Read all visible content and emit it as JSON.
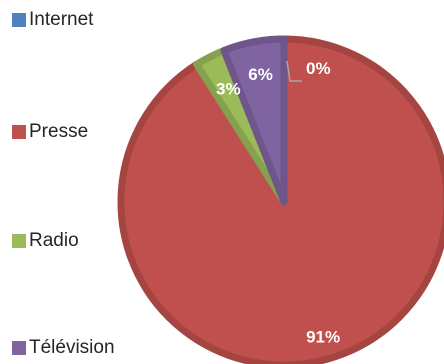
{
  "chart_data": {
    "type": "pie",
    "categories": [
      "Internet",
      "Presse",
      "Radio",
      "Télévision"
    ],
    "values": [
      0,
      91,
      3,
      6
    ],
    "data_labels": [
      "0%",
      "91%",
      "3%",
      "6%"
    ],
    "colors": [
      "#4f81bd",
      "#c0504d",
      "#9bbb59",
      "#8064a2"
    ],
    "legend_position": "left"
  }
}
